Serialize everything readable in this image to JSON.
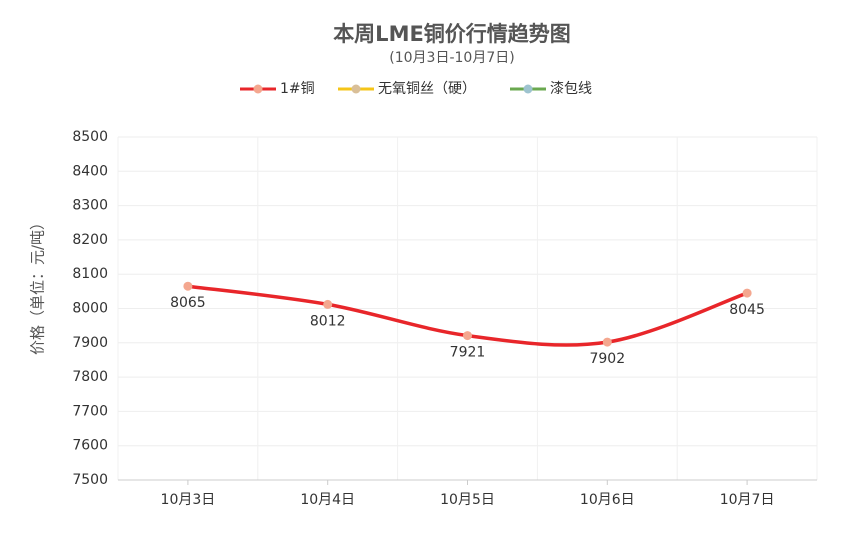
{
  "chart_data": {
    "type": "line",
    "title": "本周LME铜价行情趋势图",
    "subtitle": "(10月3日-10月7日)",
    "y_label": "价格（单位：元/吨）",
    "categories": [
      "10月3日",
      "10月4日",
      "10月5日",
      "10月6日",
      "10月7日"
    ],
    "series": [
      {
        "name": "1#铜",
        "color": "#e8262a",
        "marker_color": "#f4a78f",
        "values": [
          8065,
          8012,
          7921,
          7902,
          8045
        ]
      },
      {
        "name": "无氧铜丝（硬）",
        "color": "#f5c518",
        "marker_color": "#d9bf98",
        "values": [
          null,
          null,
          null,
          null,
          null
        ]
      },
      {
        "name": "漆包线",
        "color": "#6aa84f",
        "marker_color": "#9ec3cf",
        "values": [
          null,
          null,
          null,
          null,
          null
        ]
      }
    ],
    "ylim": [
      7500,
      8500
    ],
    "yticks": [
      7500,
      7600,
      7700,
      7800,
      7900,
      8000,
      8100,
      8200,
      8300,
      8400,
      8500
    ],
    "grid": true,
    "smooth": true,
    "legend": "top"
  }
}
